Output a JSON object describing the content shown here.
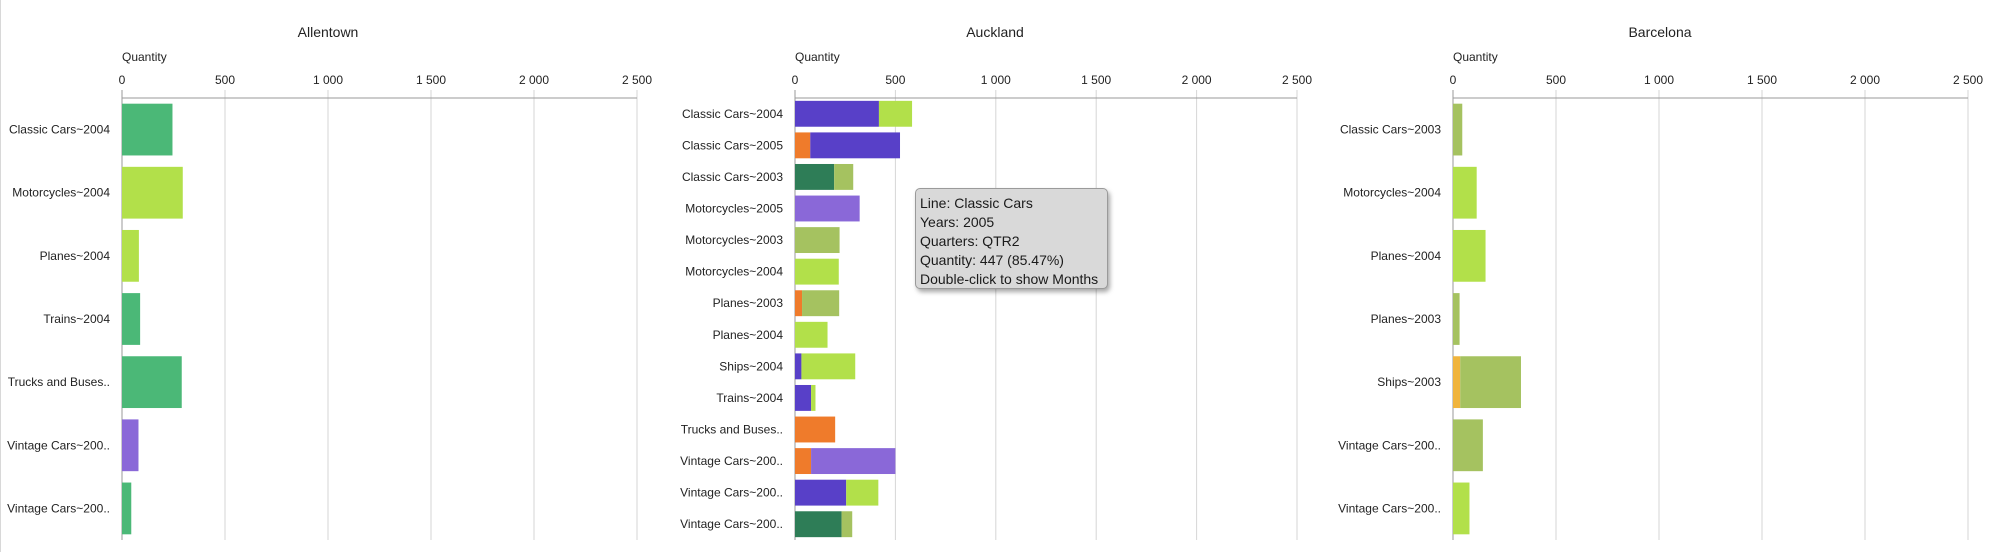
{
  "chart_data": [
    {
      "type": "bar",
      "orientation": "horizontal",
      "stacked": true,
      "title": "Allentown",
      "xlabel": "Quantity",
      "xlim": [
        0,
        2500
      ],
      "xticks": [
        "0",
        "500",
        "1 000",
        "1 500",
        "2 000",
        "2 500"
      ],
      "grid": true,
      "categories": [
        "Classic Cars~2004",
        "Motorcycles~2004",
        "Planes~2004",
        "Trains~2004",
        "Trucks and Buses..",
        "Vintage Cars~200..",
        "Vintage Cars~200.."
      ],
      "series": [
        {
          "color": "#4bb877",
          "values": [
            245,
            0,
            0,
            88,
            290,
            0,
            45
          ]
        },
        {
          "color": "#b2e04a",
          "values": [
            0,
            295,
            82,
            0,
            0,
            0,
            0
          ]
        },
        {
          "color": "#8a68d8",
          "values": [
            0,
            0,
            0,
            0,
            0,
            80,
            0
          ]
        }
      ]
    },
    {
      "type": "bar",
      "orientation": "horizontal",
      "stacked": true,
      "title": "Auckland",
      "xlabel": "Quantity",
      "xlim": [
        0,
        2500
      ],
      "xticks": [
        "0",
        "500",
        "1 000",
        "1 500",
        "2 000",
        "2 500"
      ],
      "grid": true,
      "categories": [
        "Classic Cars~2004",
        "Classic Cars~2005",
        "Classic Cars~2003",
        "Motorcycles~2005",
        "Motorcycles~2003",
        "Motorcycles~2004",
        "Planes~2003",
        "Planes~2004",
        "Ships~2004",
        "Trains~2004",
        "Trucks and Buses..",
        "Vintage Cars~200..",
        "Vintage Cars~200..",
        "Vintage Cars~200.."
      ],
      "series": [
        {
          "color": "#ef7b2b",
          "values": [
            0,
            76,
            0,
            0,
            0,
            0,
            35,
            0,
            0,
            0,
            200,
            80,
            0,
            0
          ]
        },
        {
          "color": "#5840c8",
          "values": [
            418,
            447,
            0,
            0,
            0,
            0,
            0,
            0,
            32,
            80,
            0,
            0,
            255,
            0
          ]
        },
        {
          "color": "#2e7d57",
          "values": [
            0,
            0,
            195,
            0,
            0,
            0,
            0,
            0,
            0,
            0,
            0,
            0,
            0,
            232
          ]
        },
        {
          "color": "#8a68d8",
          "values": [
            0,
            0,
            0,
            322,
            0,
            0,
            0,
            0,
            0,
            0,
            0,
            420,
            0,
            0
          ]
        },
        {
          "color": "#a5c260",
          "values": [
            0,
            0,
            95,
            0,
            222,
            0,
            185,
            0,
            0,
            0,
            0,
            0,
            0,
            53
          ]
        },
        {
          "color": "#b2e04a",
          "values": [
            165,
            0,
            0,
            0,
            0,
            218,
            0,
            162,
            268,
            22,
            0,
            0,
            160,
            0
          ]
        }
      ]
    },
    {
      "type": "bar",
      "orientation": "horizontal",
      "stacked": true,
      "title": "Barcelona",
      "xlabel": "Quantity",
      "xlim": [
        0,
        2500
      ],
      "xticks": [
        "0",
        "500",
        "1 000",
        "1 500",
        "2 000",
        "2 500"
      ],
      "grid": true,
      "categories": [
        "Classic Cars~2003",
        "Motorcycles~2004",
        "Planes~2004",
        "Planes~2003",
        "Ships~2003",
        "Vintage Cars~200..",
        "Vintage Cars~200.."
      ],
      "series": [
        {
          "color": "#f0b43c",
          "values": [
            0,
            0,
            0,
            0,
            35,
            0,
            0
          ]
        },
        {
          "color": "#a5c260",
          "values": [
            45,
            0,
            0,
            32,
            295,
            145,
            0
          ]
        },
        {
          "color": "#b2e04a",
          "values": [
            0,
            115,
            158,
            0,
            0,
            0,
            80
          ]
        }
      ]
    }
  ],
  "tooltip": {
    "line": "Line: Classic Cars",
    "years": "Years: 2005",
    "quarters": "Quarters: QTR2",
    "quantity": "Quantity: 447 (85.47%)",
    "hint": "Double-click to show Months"
  }
}
